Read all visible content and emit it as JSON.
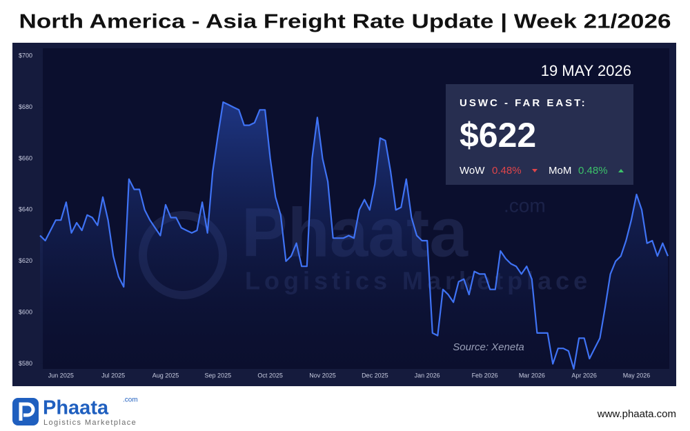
{
  "header": {
    "title": "North America - Asia Freight Rate Update | Week 21/2026"
  },
  "chart_data": {
    "type": "line",
    "categories": [
      null,
      null,
      null,
      null,
      "Jun 2025",
      null,
      null,
      null,
      null,
      null,
      null,
      null,
      null,
      null,
      "Jul 2025",
      null,
      null,
      null,
      null,
      null,
      null,
      null,
      null,
      null,
      "Aug 2025",
      null,
      null,
      null,
      null,
      null,
      null,
      null,
      null,
      null,
      "Sep 2025",
      null,
      null,
      null,
      null,
      null,
      null,
      null,
      null,
      null,
      "Oct 2025",
      null,
      null,
      null,
      null,
      null,
      null,
      null,
      null,
      null,
      "Nov 2025",
      null,
      null,
      null,
      null,
      null,
      null,
      null,
      null,
      null,
      "Dec 2025",
      null,
      null,
      null,
      null,
      null,
      null,
      null,
      null,
      null,
      "Jan 2026",
      null,
      null,
      null,
      null,
      null,
      null,
      null,
      null,
      null,
      null,
      "Feb 2026",
      null,
      null,
      null,
      null,
      null,
      null,
      null,
      null,
      "Mar 2026",
      null,
      null,
      null,
      null,
      null,
      null,
      null,
      null,
      null,
      "Apr 2026",
      null,
      null,
      null,
      null,
      null,
      null,
      null,
      null,
      null,
      "May 2026",
      null,
      null,
      null,
      null,
      null,
      null
    ],
    "series": [
      {
        "color": "#3f73f5",
        "values": [
          630,
          628,
          632,
          636,
          636,
          643,
          631,
          635,
          632,
          638,
          637,
          634,
          645,
          636,
          622,
          614,
          610,
          652,
          648,
          648,
          640,
          636,
          633,
          630,
          642,
          637,
          637,
          633,
          632,
          631,
          632,
          643,
          631,
          655,
          669,
          682,
          681,
          680,
          679,
          673,
          673,
          674,
          679,
          679,
          660,
          645,
          638,
          620,
          622,
          627,
          618,
          618,
          660,
          676,
          660,
          651,
          629,
          629,
          629,
          630,
          629,
          640,
          644,
          640,
          650,
          668,
          667,
          655,
          640,
          641,
          652,
          637,
          630,
          628,
          628,
          592,
          591,
          609,
          607,
          604,
          612,
          613,
          607,
          616,
          615,
          615,
          609,
          609,
          624,
          621,
          619,
          618,
          615,
          618,
          613,
          592,
          592,
          592,
          580,
          586,
          586,
          585,
          578,
          590,
          590,
          582,
          586,
          590,
          602,
          615,
          620,
          622,
          628,
          636,
          646,
          640,
          627,
          628,
          622,
          627,
          622
        ]
      }
    ],
    "ylim": [
      578,
      703
    ],
    "yticks": [
      {
        "value": 580,
        "label": "$580"
      },
      {
        "value": 600,
        "label": "$600"
      },
      {
        "value": 620,
        "label": "$620"
      },
      {
        "value": 640,
        "label": "$640"
      },
      {
        "value": 660,
        "label": "$660"
      },
      {
        "value": 680,
        "label": "$680"
      },
      {
        "value": 700,
        "label": "$700"
      }
    ],
    "source": "Source: Xeneta"
  },
  "panel": {
    "date": "19 MAY 2026",
    "route": "USWC - FAR EAST:",
    "price": "$622",
    "wow_label": "WoW",
    "wow_value": "0.48%",
    "mom_label": "MoM",
    "mom_value": "0.48%"
  },
  "brand": {
    "name": "Phaata",
    "tld": ".com",
    "tagline": "Logistics Marketplace",
    "url": "www.phaata.com"
  }
}
